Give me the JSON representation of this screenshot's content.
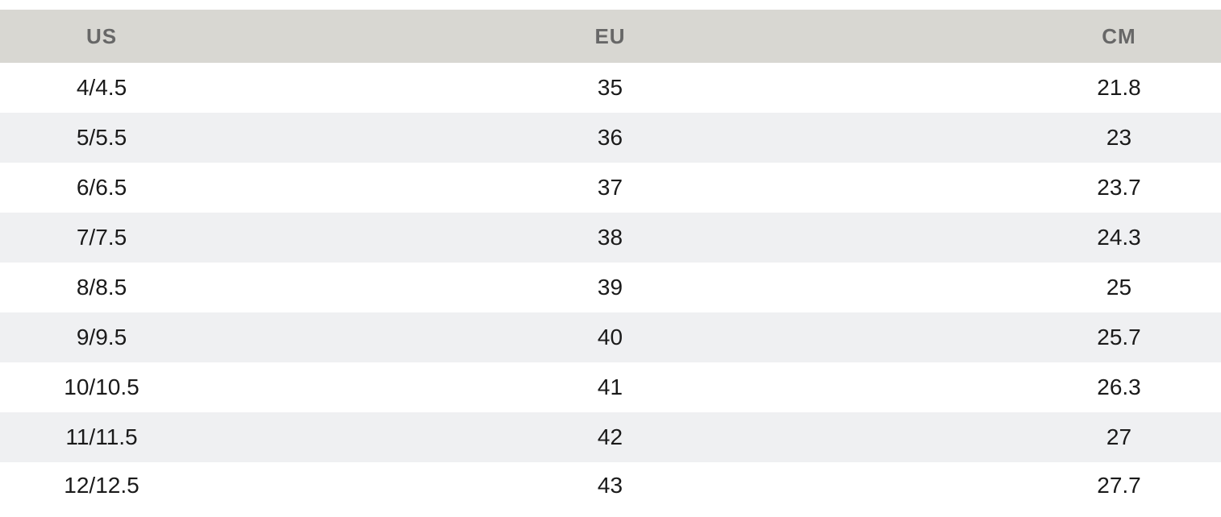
{
  "table": {
    "headers": [
      "US",
      "EU",
      "CM"
    ],
    "rows": [
      [
        "4/4.5",
        "35",
        "21.8"
      ],
      [
        "5/5.5",
        "36",
        "23"
      ],
      [
        "6/6.5",
        "37",
        "23.7"
      ],
      [
        "7/7.5",
        "38",
        "24.3"
      ],
      [
        "8/8.5",
        "39",
        "25"
      ],
      [
        "9/9.5",
        "40",
        "25.7"
      ],
      [
        "10/10.5",
        "41",
        "26.3"
      ],
      [
        "11/11.5",
        "42",
        "27"
      ],
      [
        "12/12.5",
        "43",
        "27.7"
      ]
    ]
  },
  "colors": {
    "header_bg": "#d8d7d2",
    "header_text": "#676767",
    "stripe_bg": "#eff0f2",
    "cell_text": "#1a1a1a"
  }
}
